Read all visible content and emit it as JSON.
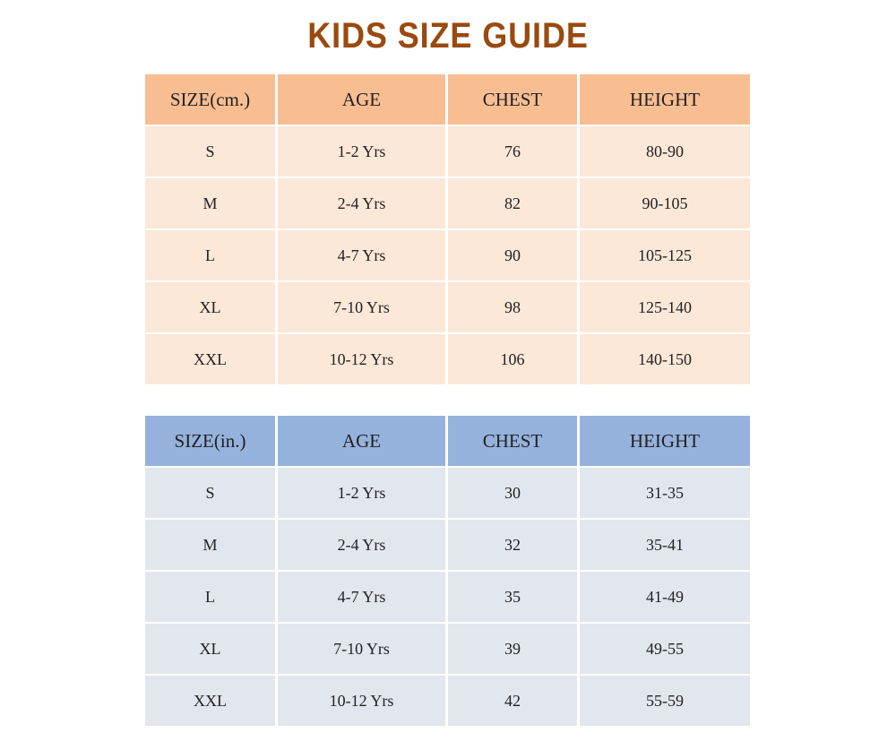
{
  "title": "KIDS SIZE GUIDE",
  "tables": [
    {
      "header": [
        "SIZE(cm.)",
        "AGE",
        "CHEST",
        "HEIGHT"
      ],
      "rows": [
        [
          "S",
          "1-2 Yrs",
          "76",
          "80-90"
        ],
        [
          "M",
          "2-4 Yrs",
          "82",
          "90-105"
        ],
        [
          "L",
          "4-7 Yrs",
          "90",
          "105-125"
        ],
        [
          "XL",
          "7-10 Yrs",
          "98",
          "125-140"
        ],
        [
          "XXL",
          "10-12 Yrs",
          "106",
          "140-150"
        ]
      ]
    },
    {
      "header": [
        "SIZE(in.)",
        "AGE",
        "CHEST",
        "HEIGHT"
      ],
      "rows": [
        [
          "S",
          "1-2 Yrs",
          "30",
          "31-35"
        ],
        [
          "M",
          "2-4 Yrs",
          "32",
          "35-41"
        ],
        [
          "L",
          "4-7 Yrs",
          "35",
          "41-49"
        ],
        [
          "XL",
          "7-10 Yrs",
          "39",
          "49-55"
        ],
        [
          "XXL",
          "10-12 Yrs",
          "42",
          "55-59"
        ]
      ]
    }
  ]
}
